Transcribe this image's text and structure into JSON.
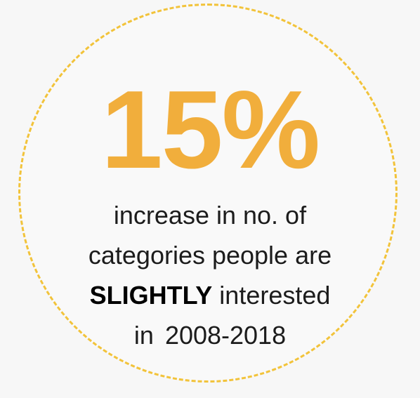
{
  "stat": {
    "figure": "15%",
    "line1": "increase in no. of",
    "line2": "categories people are",
    "line3_bold": "SLIGHTLY",
    "line3_rest": "interested",
    "line4_prefix": "in",
    "line4_range": "2008-2018"
  },
  "colors": {
    "figure": "#f1ae3c",
    "ring": "#f2c33a",
    "text": "#1c1c1c",
    "background": "#f7f7f7"
  }
}
